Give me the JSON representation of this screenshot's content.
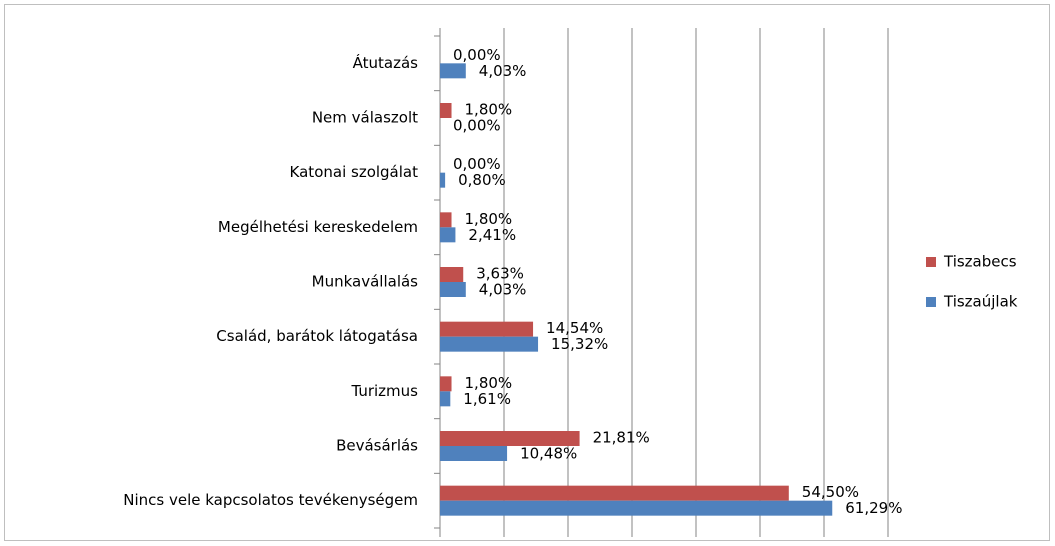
{
  "chart_data": {
    "type": "hbar",
    "categories": [
      "Átutazás",
      "Nem válaszolt",
      "Katonai szolgálat",
      "Megélhetési kereskedelem",
      "Munkavállalás",
      "Család, barátok látogatása",
      "Turizmus",
      "Bevásárlás",
      "Nincs vele kapcsolatos tevékenységem"
    ],
    "series": [
      {
        "name": "Tiszabecs",
        "color": "#c0504d",
        "values": [
          0,
          1.8,
          0,
          1.8,
          3.63,
          14.54,
          1.8,
          21.81,
          54.5
        ],
        "value_labels": [
          "0,00%",
          "1,80%",
          "0,00%",
          "1,80%",
          "3,63%",
          "14,54%",
          "1,80%",
          "21,81%",
          "54,50%"
        ]
      },
      {
        "name": "Tiszaújlak",
        "color": "#4f81bd",
        "values": [
          4.03,
          0,
          0.8,
          2.41,
          4.03,
          15.32,
          1.61,
          10.48,
          61.29
        ],
        "value_labels": [
          "4,03%",
          "0,00%",
          "0,80%",
          "2,41%",
          "4,03%",
          "15,32%",
          "1,61%",
          "10,48%",
          "61,29%"
        ]
      }
    ],
    "xlim": [
      0,
      70
    ],
    "xticks": [
      0,
      10,
      20,
      30,
      40,
      50,
      60,
      70
    ],
    "grid": true,
    "legend": "right"
  }
}
